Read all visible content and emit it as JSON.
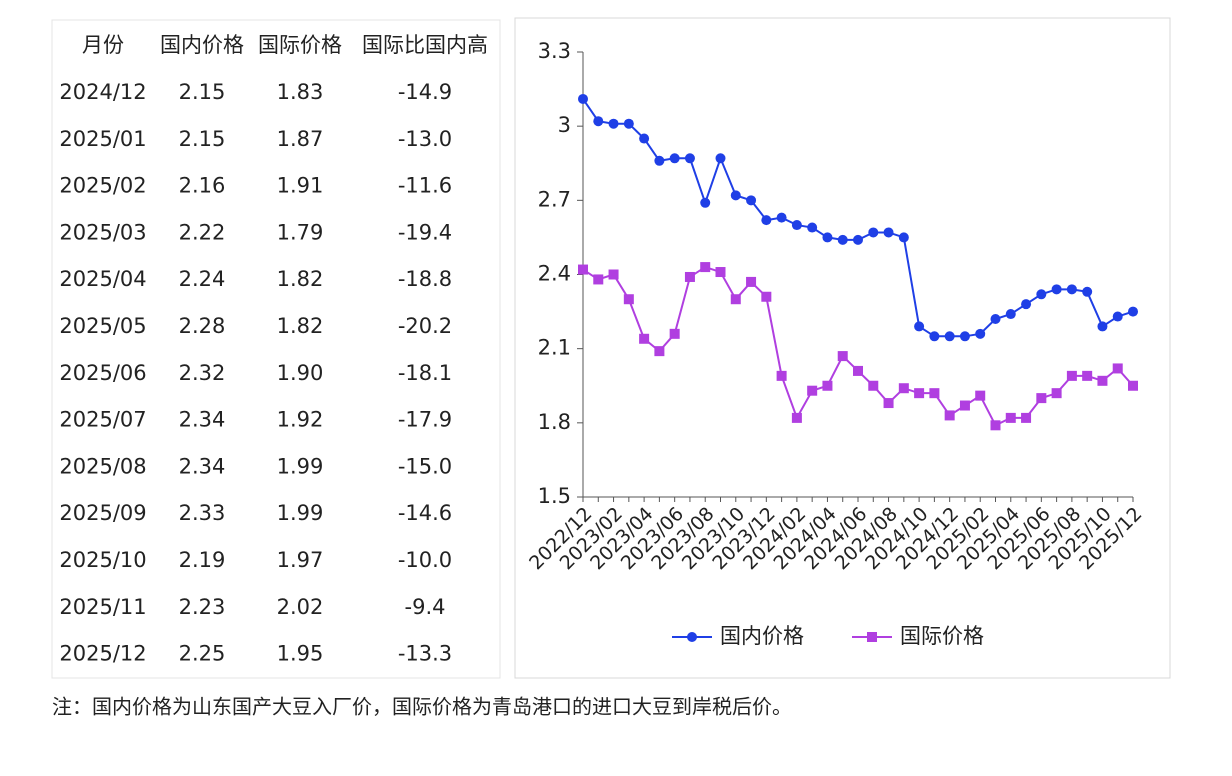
{
  "table": {
    "headers": [
      "月份",
      "国内价格",
      "国际价格",
      "国际比国内高"
    ],
    "rows": [
      [
        "2024/12",
        "2.15",
        "1.83",
        "-14.9"
      ],
      [
        "2025/01",
        "2.15",
        "1.87",
        "-13.0"
      ],
      [
        "2025/02",
        "2.16",
        "1.91",
        "-11.6"
      ],
      [
        "2025/03",
        "2.22",
        "1.79",
        "-19.4"
      ],
      [
        "2025/04",
        "2.24",
        "1.82",
        "-18.8"
      ],
      [
        "2025/05",
        "2.28",
        "1.82",
        "-20.2"
      ],
      [
        "2025/06",
        "2.32",
        "1.90",
        "-18.1"
      ],
      [
        "2025/07",
        "2.34",
        "1.92",
        "-17.9"
      ],
      [
        "2025/08",
        "2.34",
        "1.99",
        "-15.0"
      ],
      [
        "2025/09",
        "2.33",
        "1.99",
        "-14.6"
      ],
      [
        "2025/10",
        "2.19",
        "1.97",
        "-10.0"
      ],
      [
        "2025/11",
        "2.23",
        "2.02",
        "-9.4"
      ],
      [
        "2025/12",
        "2.25",
        "1.95",
        "-13.3"
      ]
    ]
  },
  "note": "注：国内价格为山东国产大豆入厂价，国际价格为青岛港口的进口大豆到岸税后价。",
  "chart_data": {
    "type": "line",
    "categories": [
      "2022/12",
      null,
      "2023/02",
      null,
      "2023/04",
      null,
      "2023/06",
      null,
      "2023/08",
      null,
      "2023/10",
      null,
      "2023/12",
      null,
      "2024/02",
      null,
      "2024/04",
      null,
      "2024/06",
      null,
      "2024/08",
      null,
      "2024/10",
      null,
      "2024/12",
      null,
      "2025/02",
      null,
      "2025/04",
      null,
      "2025/06",
      null,
      "2025/08",
      null,
      "2025/10",
      null,
      "2025/12"
    ],
    "series": [
      {
        "name": "国内价格",
        "color": "#1f3fe6",
        "marker": "circle",
        "values": [
          3.11,
          3.02,
          3.01,
          3.01,
          2.95,
          2.86,
          2.87,
          2.87,
          2.69,
          2.87,
          2.72,
          2.7,
          2.62,
          2.63,
          2.6,
          2.59,
          2.55,
          2.54,
          2.54,
          2.57,
          2.57,
          2.55,
          2.19,
          2.15,
          2.15,
          2.15,
          2.16,
          2.22,
          2.24,
          2.28,
          2.32,
          2.34,
          2.34,
          2.33,
          2.19,
          2.23,
          2.25
        ]
      },
      {
        "name": "国际价格",
        "color": "#b03fe0",
        "marker": "square",
        "values": [
          2.42,
          2.38,
          2.4,
          2.3,
          2.14,
          2.09,
          2.16,
          2.39,
          2.43,
          2.41,
          2.3,
          2.37,
          2.31,
          1.99,
          1.82,
          1.93,
          1.95,
          2.07,
          2.01,
          1.95,
          1.88,
          1.94,
          1.92,
          1.92,
          1.83,
          1.87,
          1.91,
          1.79,
          1.82,
          1.82,
          1.9,
          1.92,
          1.99,
          1.99,
          1.97,
          2.02,
          1.95
        ]
      }
    ],
    "ylim": [
      1.5,
      3.3
    ],
    "yticks": [
      1.5,
      1.8,
      2.1,
      2.4,
      2.7,
      3,
      3.3
    ],
    "legend": "bottom"
  }
}
